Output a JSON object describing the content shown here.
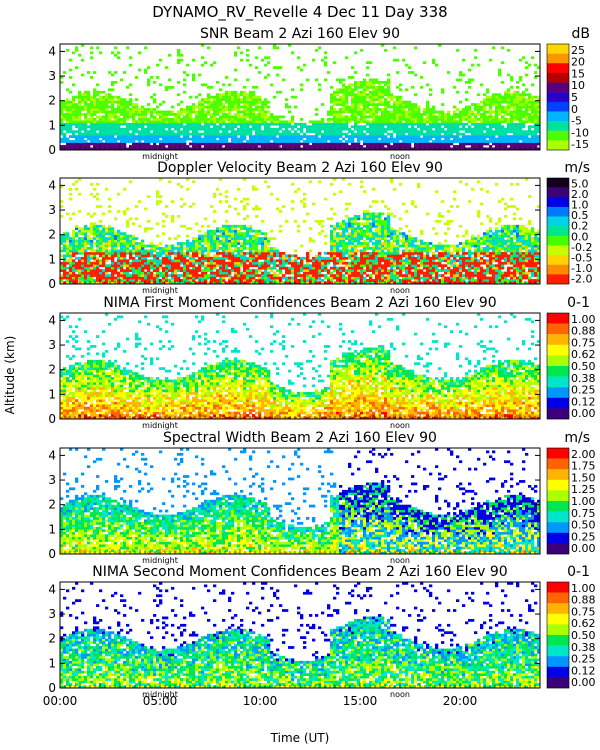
{
  "header": {
    "line1": "DYNAMO_RV_Revelle    4 Dec 11 Day 338"
  },
  "figure": {
    "ylabel": "Altitude (km)",
    "xlabel": "Time (UT)"
  },
  "chart_data": [
    {
      "type": "heatmap",
      "title": "SNR Beam 2 Azi 160 Elev 90",
      "unit": "dB",
      "xlim_hours": [
        0,
        24
      ],
      "ylim_km": [
        0,
        4.3
      ],
      "yticks": [
        0,
        1,
        2,
        3,
        4
      ],
      "xticks": [
        "00:00",
        "05:00",
        "10:00",
        "15:00",
        "20:00"
      ],
      "xtick_hours": [
        0,
        5,
        10,
        15,
        20
      ],
      "markers": [
        {
          "label": "midnight",
          "hour": 5.0
        },
        {
          "label": "noon",
          "hour": 17.0
        }
      ],
      "colorbar_labels": [
        "25",
        "20",
        "15",
        "10",
        "5",
        "0",
        "-5",
        "-10",
        "-15"
      ],
      "colorbar_colors": [
        "#ffd600",
        "#ff9600",
        "#ff0000",
        "#b40000",
        "#5a0078",
        "#2800c8",
        "#0040ff",
        "#00b4ff",
        "#00e0a0",
        "#4cff00",
        "#aaff00"
      ],
      "variable": "snr"
    },
    {
      "type": "heatmap",
      "title": "Doppler Velocity Beam 2 Azi 160 Elev 90",
      "unit": "m/s",
      "xlim_hours": [
        0,
        24
      ],
      "ylim_km": [
        0,
        4.3
      ],
      "yticks": [
        0,
        1,
        2,
        3,
        4
      ],
      "xticks": [
        "00:00",
        "05:00",
        "10:00",
        "15:00",
        "20:00"
      ],
      "xtick_hours": [
        0,
        5,
        10,
        15,
        20
      ],
      "markers": [
        {
          "label": "midnight",
          "hour": 5.0
        },
        {
          "label": "noon",
          "hour": 17.0
        }
      ],
      "colorbar_labels": [
        "5.0",
        "2.0",
        "1.0",
        "0.5",
        "0.2",
        "0.0",
        "-0.2",
        "-0.5",
        "-1.0",
        "-2.0"
      ],
      "colorbar_colors": [
        "#14001e",
        "#3c0078",
        "#0000e6",
        "#0078ff",
        "#00d2e6",
        "#00e68c",
        "#46ff00",
        "#c8ff00",
        "#ffd200",
        "#ff8c00",
        "#ff1e00"
      ],
      "variable": "velocity"
    },
    {
      "type": "heatmap",
      "title": "NIMA First Moment Confidences Beam 2 Azi 160 Elev 90",
      "unit": "0-1",
      "xlim_hours": [
        0,
        24
      ],
      "ylim_km": [
        0,
        4.3
      ],
      "yticks": [
        0,
        1,
        2,
        3,
        4
      ],
      "xticks": [
        "00:00",
        "05:00",
        "10:00",
        "15:00",
        "20:00"
      ],
      "xtick_hours": [
        0,
        5,
        10,
        15,
        20
      ],
      "markers": [
        {
          "label": "midnight",
          "hour": 5.0
        },
        {
          "label": "noon",
          "hour": 17.0
        }
      ],
      "colorbar_labels": [
        "1.00",
        "0.88",
        "0.75",
        "0.62",
        "0.50",
        "0.38",
        "0.25",
        "0.12",
        "0.00"
      ],
      "colorbar_colors": [
        "#ff0000",
        "#ff6400",
        "#ffb400",
        "#ffff00",
        "#aaff00",
        "#00e650",
        "#00e6c8",
        "#0096ff",
        "#0000e6",
        "#3c0078"
      ],
      "variable": "conf1"
    },
    {
      "type": "heatmap",
      "title": "Spectral Width Beam 2 Azi 160 Elev 90",
      "unit": "m/s",
      "xlim_hours": [
        0,
        24
      ],
      "ylim_km": [
        0,
        4.3
      ],
      "yticks": [
        0,
        1,
        2,
        3,
        4
      ],
      "xticks": [
        "00:00",
        "05:00",
        "10:00",
        "15:00",
        "20:00"
      ],
      "xtick_hours": [
        0,
        5,
        10,
        15,
        20
      ],
      "markers": [
        {
          "label": "midnight",
          "hour": 5.0
        },
        {
          "label": "noon",
          "hour": 17.0
        }
      ],
      "colorbar_labels": [
        "2.00",
        "1.75",
        "1.50",
        "1.25",
        "1.00",
        "0.75",
        "0.50",
        "0.25",
        "0.00"
      ],
      "colorbar_colors": [
        "#ff0000",
        "#ff6400",
        "#ffb400",
        "#ffff00",
        "#aaff00",
        "#00e650",
        "#00e6c8",
        "#0096ff",
        "#0000e6",
        "#3c0078"
      ],
      "variable": "width"
    },
    {
      "type": "heatmap",
      "title": "NIMA Second Moment Confidences Beam 2 Azi 160 Elev 90",
      "unit": "0-1",
      "xlim_hours": [
        0,
        24
      ],
      "ylim_km": [
        0,
        4.3
      ],
      "yticks": [
        0,
        1,
        2,
        3,
        4
      ],
      "xticks": [
        "00:00",
        "05:00",
        "10:00",
        "15:00",
        "20:00"
      ],
      "xtick_hours": [
        0,
        5,
        10,
        15,
        20
      ],
      "markers": [
        {
          "label": "midnight",
          "hour": 5.0
        },
        {
          "label": "noon",
          "hour": 17.0
        }
      ],
      "colorbar_labels": [
        "1.00",
        "0.88",
        "0.75",
        "0.62",
        "0.50",
        "0.38",
        "0.25",
        "0.12",
        "0.00"
      ],
      "colorbar_colors": [
        "#ff0000",
        "#ff6400",
        "#ffb400",
        "#ffff00",
        "#aaff00",
        "#00e650",
        "#00e6c8",
        "#0096ff",
        "#0000e6",
        "#3c0078"
      ],
      "variable": "conf2"
    }
  ]
}
